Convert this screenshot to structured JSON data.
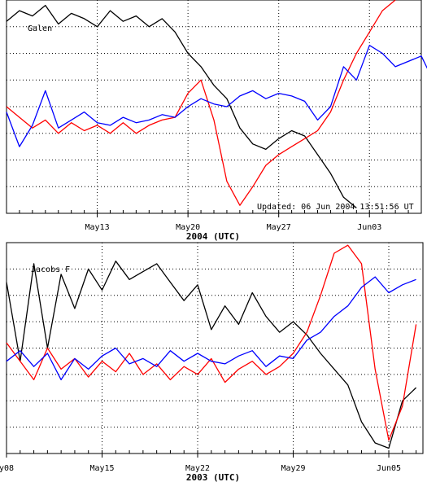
{
  "chart_data": [
    {
      "type": "line",
      "legend_partial": "Galen",
      "updated_text": "Updated: 06 Jun 2004 13:51:56 UT",
      "xlabel": "2004 (UTC)",
      "x_ticks": [
        {
          "label": "May13",
          "day": 13
        },
        {
          "label": "May20",
          "day": 20
        },
        {
          "label": "May27",
          "day": 27
        },
        {
          "label": "Jun03",
          "day": 34
        }
      ],
      "x_range": [
        6,
        38
      ],
      "y_range": [
        0,
        8
      ],
      "grid": true,
      "series": [
        {
          "color": "#000000",
          "points": [
            [
              6,
              7.2
            ],
            [
              7,
              7.6
            ],
            [
              8,
              7.4
            ],
            [
              9,
              7.8
            ],
            [
              10,
              7.1
            ],
            [
              11,
              7.5
            ],
            [
              12,
              7.3
            ],
            [
              13,
              7.0
            ],
            [
              14,
              7.6
            ],
            [
              15,
              7.2
            ],
            [
              16,
              7.4
            ],
            [
              17,
              7.0
            ],
            [
              18,
              7.3
            ],
            [
              19,
              6.8
            ],
            [
              20,
              6.0
            ],
            [
              21,
              5.5
            ],
            [
              22,
              4.8
            ],
            [
              23,
              4.3
            ],
            [
              24,
              3.2
            ],
            [
              25,
              2.6
            ],
            [
              26,
              2.4
            ],
            [
              27,
              2.8
            ],
            [
              28,
              3.1
            ],
            [
              29,
              2.9
            ],
            [
              30,
              2.2
            ],
            [
              31,
              1.5
            ],
            [
              32,
              0.6
            ],
            [
              33,
              0.2
            ]
          ]
        },
        {
          "color": "#ff0000",
          "points": [
            [
              6,
              4.0
            ],
            [
              7,
              3.6
            ],
            [
              8,
              3.2
            ],
            [
              9,
              3.5
            ],
            [
              10,
              3.0
            ],
            [
              11,
              3.4
            ],
            [
              12,
              3.1
            ],
            [
              13,
              3.3
            ],
            [
              14,
              3.0
            ],
            [
              15,
              3.4
            ],
            [
              16,
              3.0
            ],
            [
              17,
              3.3
            ],
            [
              18,
              3.5
            ],
            [
              19,
              3.6
            ],
            [
              20,
              4.5
            ],
            [
              21,
              5.0
            ],
            [
              22,
              3.5
            ],
            [
              23,
              1.2
            ],
            [
              24,
              0.3
            ],
            [
              25,
              1.0
            ],
            [
              26,
              1.8
            ],
            [
              27,
              2.2
            ],
            [
              28,
              2.5
            ],
            [
              29,
              2.8
            ],
            [
              30,
              3.1
            ],
            [
              31,
              3.8
            ],
            [
              32,
              5.0
            ],
            [
              33,
              6.0
            ],
            [
              34,
              6.8
            ],
            [
              35,
              7.6
            ],
            [
              36,
              8.0
            ]
          ]
        },
        {
          "color": "#0000ff",
          "points": [
            [
              6,
              3.8
            ],
            [
              7,
              2.5
            ],
            [
              8,
              3.3
            ],
            [
              9,
              4.6
            ],
            [
              10,
              3.2
            ],
            [
              11,
              3.5
            ],
            [
              12,
              3.8
            ],
            [
              13,
              3.4
            ],
            [
              14,
              3.3
            ],
            [
              15,
              3.6
            ],
            [
              16,
              3.4
            ],
            [
              17,
              3.5
            ],
            [
              18,
              3.7
            ],
            [
              19,
              3.6
            ],
            [
              20,
              4.0
            ],
            [
              21,
              4.3
            ],
            [
              22,
              4.1
            ],
            [
              23,
              4.0
            ],
            [
              24,
              4.4
            ],
            [
              25,
              4.6
            ],
            [
              26,
              4.3
            ],
            [
              27,
              4.5
            ],
            [
              28,
              4.4
            ],
            [
              29,
              4.2
            ],
            [
              30,
              3.5
            ],
            [
              31,
              4.0
            ],
            [
              32,
              5.5
            ],
            [
              33,
              5.0
            ],
            [
              34,
              6.3
            ],
            [
              35,
              6.0
            ],
            [
              36,
              5.5
            ],
            [
              38,
              5.9
            ],
            [
              39,
              4.9
            ]
          ]
        }
      ]
    },
    {
      "type": "line",
      "legend_partial": "Jacobs F",
      "xlabel": "2003 (UTC)",
      "x_ticks": [
        {
          "label": "y08",
          "day": 8
        },
        {
          "label": "May15",
          "day": 15
        },
        {
          "label": "May22",
          "day": 22
        },
        {
          "label": "May29",
          "day": 29
        },
        {
          "label": "Jun05",
          "day": 36
        }
      ],
      "x_range": [
        8,
        38.5
      ],
      "y_range": [
        0,
        8
      ],
      "grid": true,
      "series": [
        {
          "color": "#000000",
          "points": [
            [
              8,
              6.5
            ],
            [
              9,
              3.5
            ],
            [
              10,
              7.2
            ],
            [
              11,
              4.0
            ],
            [
              12,
              6.8
            ],
            [
              13,
              5.5
            ],
            [
              14,
              7.0
            ],
            [
              15,
              6.2
            ],
            [
              16,
              7.3
            ],
            [
              17,
              6.6
            ],
            [
              18,
              6.9
            ],
            [
              19,
              7.2
            ],
            [
              20,
              6.5
            ],
            [
              21,
              5.8
            ],
            [
              22,
              6.4
            ],
            [
              23,
              4.7
            ],
            [
              24,
              5.6
            ],
            [
              25,
              4.9
            ],
            [
              26,
              6.1
            ],
            [
              27,
              5.2
            ],
            [
              28,
              4.6
            ],
            [
              29,
              5.0
            ],
            [
              30,
              4.5
            ],
            [
              31,
              3.8
            ],
            [
              32,
              3.2
            ],
            [
              33,
              2.6
            ],
            [
              34,
              1.2
            ],
            [
              35,
              0.4
            ],
            [
              36,
              0.2
            ],
            [
              37,
              2.0
            ],
            [
              38,
              2.5
            ]
          ]
        },
        {
          "color": "#ff0000",
          "points": [
            [
              8,
              4.2
            ],
            [
              9,
              3.5
            ],
            [
              10,
              2.8
            ],
            [
              11,
              4.0
            ],
            [
              12,
              3.2
            ],
            [
              13,
              3.6
            ],
            [
              14,
              2.9
            ],
            [
              15,
              3.5
            ],
            [
              16,
              3.1
            ],
            [
              17,
              3.8
            ],
            [
              18,
              3.0
            ],
            [
              19,
              3.4
            ],
            [
              20,
              2.8
            ],
            [
              21,
              3.3
            ],
            [
              22,
              3.0
            ],
            [
              23,
              3.6
            ],
            [
              24,
              2.7
            ],
            [
              25,
              3.2
            ],
            [
              26,
              3.5
            ],
            [
              27,
              3.0
            ],
            [
              28,
              3.3
            ],
            [
              29,
              3.8
            ],
            [
              30,
              4.6
            ],
            [
              31,
              6.0
            ],
            [
              32,
              7.6
            ],
            [
              33,
              7.9
            ],
            [
              34,
              7.2
            ],
            [
              35,
              3.2
            ],
            [
              36,
              0.5
            ],
            [
              37,
              1.8
            ],
            [
              38,
              4.9
            ]
          ]
        },
        {
          "color": "#0000ff",
          "points": [
            [
              8,
              3.5
            ],
            [
              9,
              3.9
            ],
            [
              10,
              3.3
            ],
            [
              11,
              3.8
            ],
            [
              12,
              2.8
            ],
            [
              13,
              3.6
            ],
            [
              14,
              3.2
            ],
            [
              15,
              3.7
            ],
            [
              16,
              4.0
            ],
            [
              17,
              3.4
            ],
            [
              18,
              3.6
            ],
            [
              19,
              3.3
            ],
            [
              20,
              3.9
            ],
            [
              21,
              3.5
            ],
            [
              22,
              3.8
            ],
            [
              23,
              3.5
            ],
            [
              24,
              3.4
            ],
            [
              25,
              3.7
            ],
            [
              26,
              3.9
            ],
            [
              27,
              3.3
            ],
            [
              28,
              3.7
            ],
            [
              29,
              3.6
            ],
            [
              30,
              4.3
            ],
            [
              31,
              4.6
            ],
            [
              32,
              5.2
            ],
            [
              33,
              5.6
            ],
            [
              34,
              6.3
            ],
            [
              35,
              6.7
            ],
            [
              36,
              6.1
            ],
            [
              37,
              6.4
            ],
            [
              38,
              6.6
            ]
          ]
        }
      ]
    }
  ]
}
